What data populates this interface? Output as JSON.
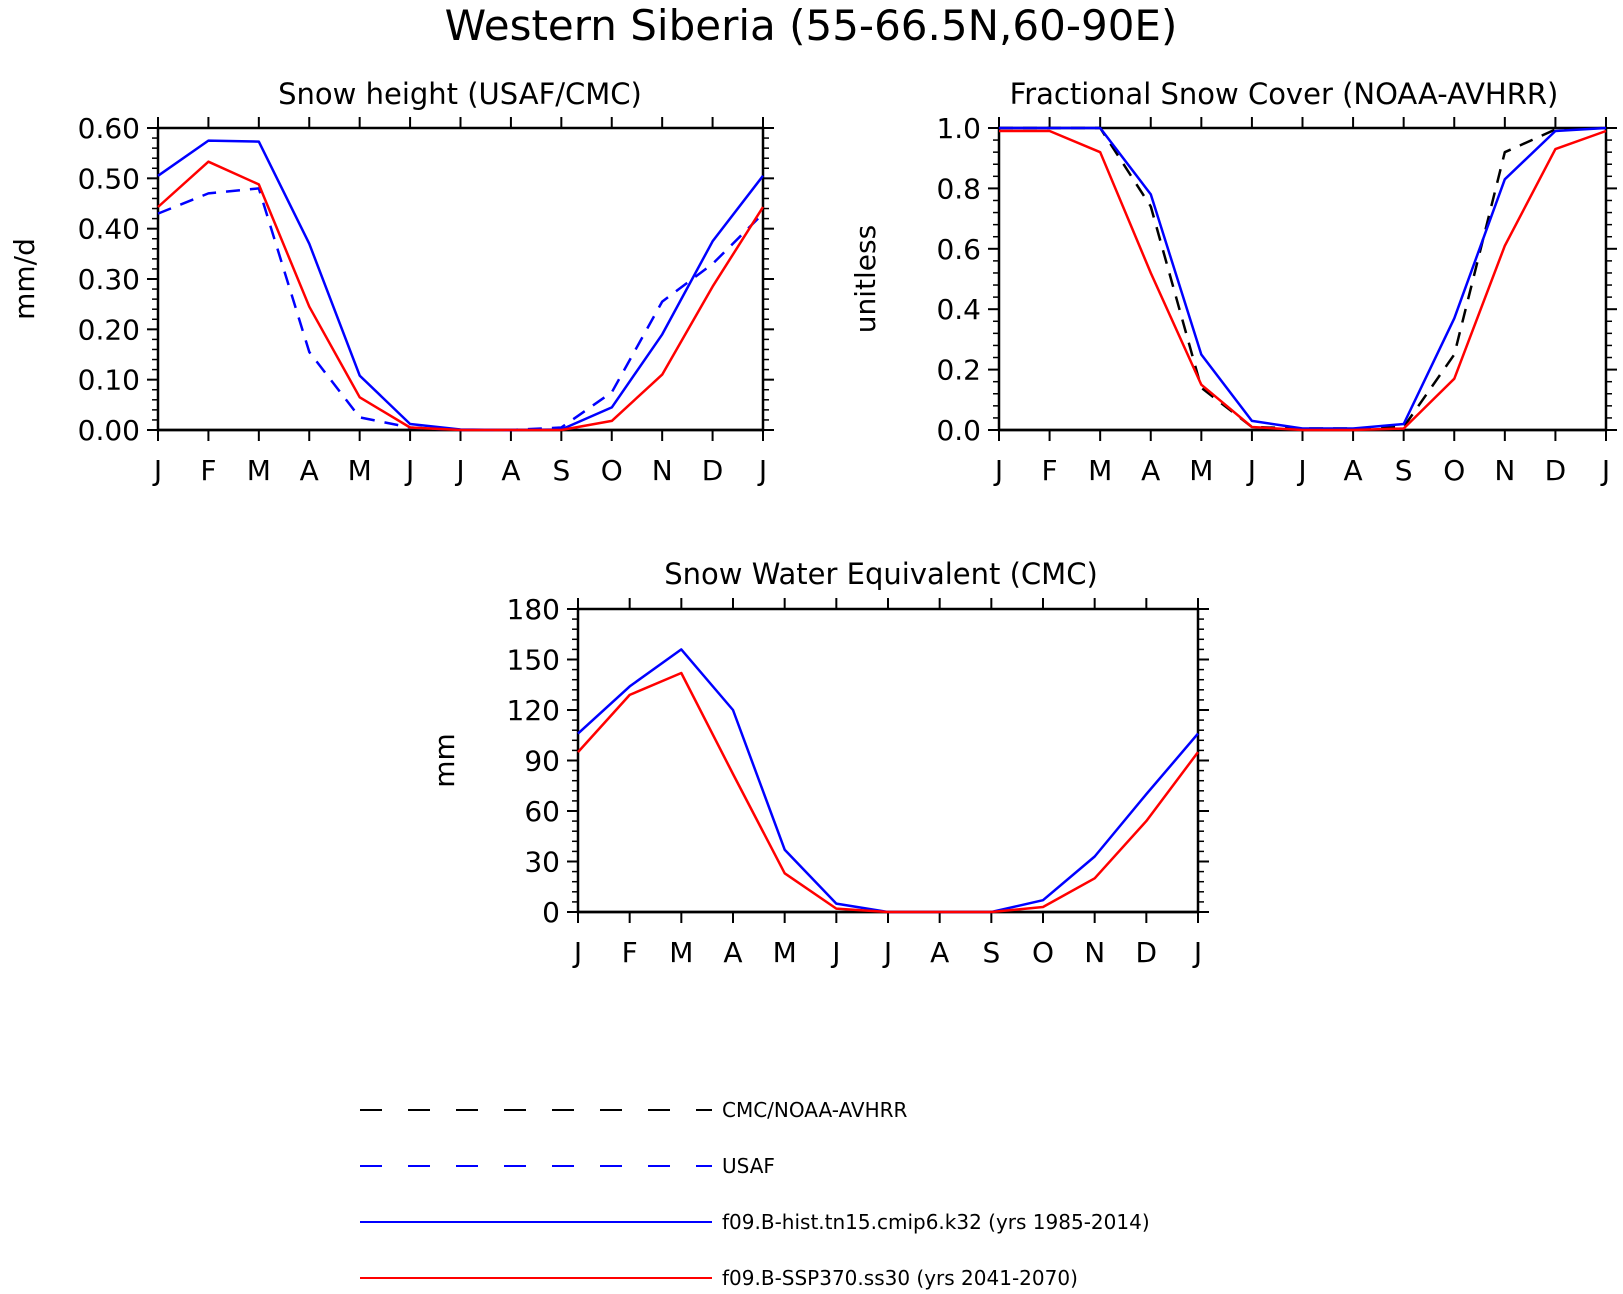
{
  "title": "Western Siberia (55-66.5N,60-90E)",
  "colors": {
    "obs": "#000000",
    "usaf": "#0000ff",
    "hist": "#0000ff",
    "ssp": "#ff0000"
  },
  "chart_data": [
    {
      "type": "line",
      "title": "Snow height (USAF/CMC)",
      "ylabel": "mm/d",
      "xlabel": "",
      "ylim": [
        0,
        0.6
      ],
      "yticks": [
        "0.00",
        "0.10",
        "0.20",
        "0.30",
        "0.40",
        "0.50",
        "0.60"
      ],
      "categories": [
        "J",
        "F",
        "M",
        "A",
        "M",
        "J",
        "J",
        "A",
        "S",
        "O",
        "N",
        "D",
        "J"
      ],
      "series": [
        {
          "key": "usaf",
          "values": [
            0.43,
            0.47,
            0.48,
            0.155,
            0.025,
            0.005,
            0.0,
            0.0,
            0.005,
            0.075,
            0.255,
            0.33,
            0.43
          ]
        },
        {
          "key": "hist",
          "values": [
            0.505,
            0.575,
            0.573,
            0.37,
            0.108,
            0.012,
            0.001,
            0.0,
            0.001,
            0.045,
            0.19,
            0.375,
            0.505
          ]
        },
        {
          "key": "ssp",
          "values": [
            0.443,
            0.533,
            0.488,
            0.245,
            0.065,
            0.005,
            0.0,
            0.0,
            0.0,
            0.018,
            0.11,
            0.285,
            0.443
          ]
        }
      ]
    },
    {
      "type": "line",
      "title": "Fractional Snow Cover (NOAA-AVHRR)",
      "ylabel": "unitless",
      "xlabel": "",
      "ylim": [
        0,
        1.0
      ],
      "yticks": [
        "0.0",
        "0.2",
        "0.4",
        "0.6",
        "0.8",
        "1.0"
      ],
      "categories": [
        "J",
        "F",
        "M",
        "A",
        "M",
        "J",
        "J",
        "A",
        "S",
        "O",
        "N",
        "D",
        "J"
      ],
      "series": [
        {
          "key": "obs",
          "values": [
            1.0,
            1.0,
            1.0,
            0.74,
            0.14,
            0.01,
            0.005,
            0.005,
            0.01,
            0.25,
            0.92,
            0.995,
            1.0
          ]
        },
        {
          "key": "hist",
          "values": [
            1.0,
            1.0,
            1.0,
            0.78,
            0.25,
            0.03,
            0.005,
            0.005,
            0.02,
            0.37,
            0.83,
            0.99,
            1.0
          ]
        },
        {
          "key": "ssp",
          "values": [
            0.99,
            0.99,
            0.92,
            0.52,
            0.15,
            0.01,
            0.0,
            0.0,
            0.005,
            0.17,
            0.61,
            0.93,
            0.99
          ]
        }
      ]
    },
    {
      "type": "line",
      "title": "Snow Water Equivalent (CMC)",
      "ylabel": "mm",
      "xlabel": "",
      "ylim": [
        0,
        180
      ],
      "yticks": [
        "0",
        "30",
        "60",
        "90",
        "120",
        "150",
        "180"
      ],
      "categories": [
        "J",
        "F",
        "M",
        "A",
        "M",
        "J",
        "J",
        "A",
        "S",
        "O",
        "N",
        "D",
        "J"
      ],
      "series": [
        {
          "key": "hist",
          "values": [
            106,
            134,
            156,
            120,
            37,
            5,
            0,
            0,
            0,
            7,
            33,
            70,
            106
          ]
        },
        {
          "key": "ssp",
          "values": [
            95,
            129,
            142,
            82,
            23,
            2,
            0,
            0,
            0,
            3,
            20,
            54,
            95
          ]
        }
      ]
    }
  ],
  "legend": [
    {
      "key": "obs",
      "label": "CMC/NOAA-AVHRR"
    },
    {
      "key": "usaf",
      "label": "USAF"
    },
    {
      "key": "hist",
      "label": "f09.B-hist.tn15.cmip6.k32 (yrs 1985-2014)"
    },
    {
      "key": "ssp",
      "label": "f09.B-SSP370.ss30 (yrs 2041-2070)"
    }
  ]
}
